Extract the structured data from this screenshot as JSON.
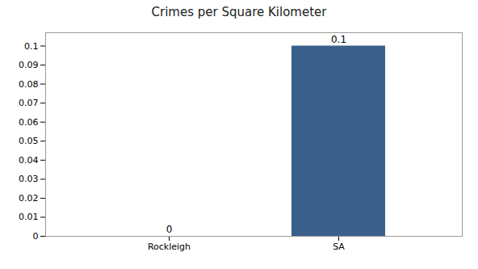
{
  "chart_data": {
    "type": "bar",
    "title": "Crimes per Square Kilometer",
    "categories": [
      "Rockleigh",
      "SA"
    ],
    "values": [
      0.0,
      0.1
    ],
    "colors": [
      "#4472a8",
      "#3a5f8a"
    ],
    "ylim": [
      0,
      0.107
    ],
    "yticks": [
      0,
      0.01,
      0.02,
      0.03,
      0.04,
      0.05,
      0.06,
      0.07,
      0.08,
      0.09,
      0.1
    ],
    "data_labels": true,
    "grid": false
  }
}
